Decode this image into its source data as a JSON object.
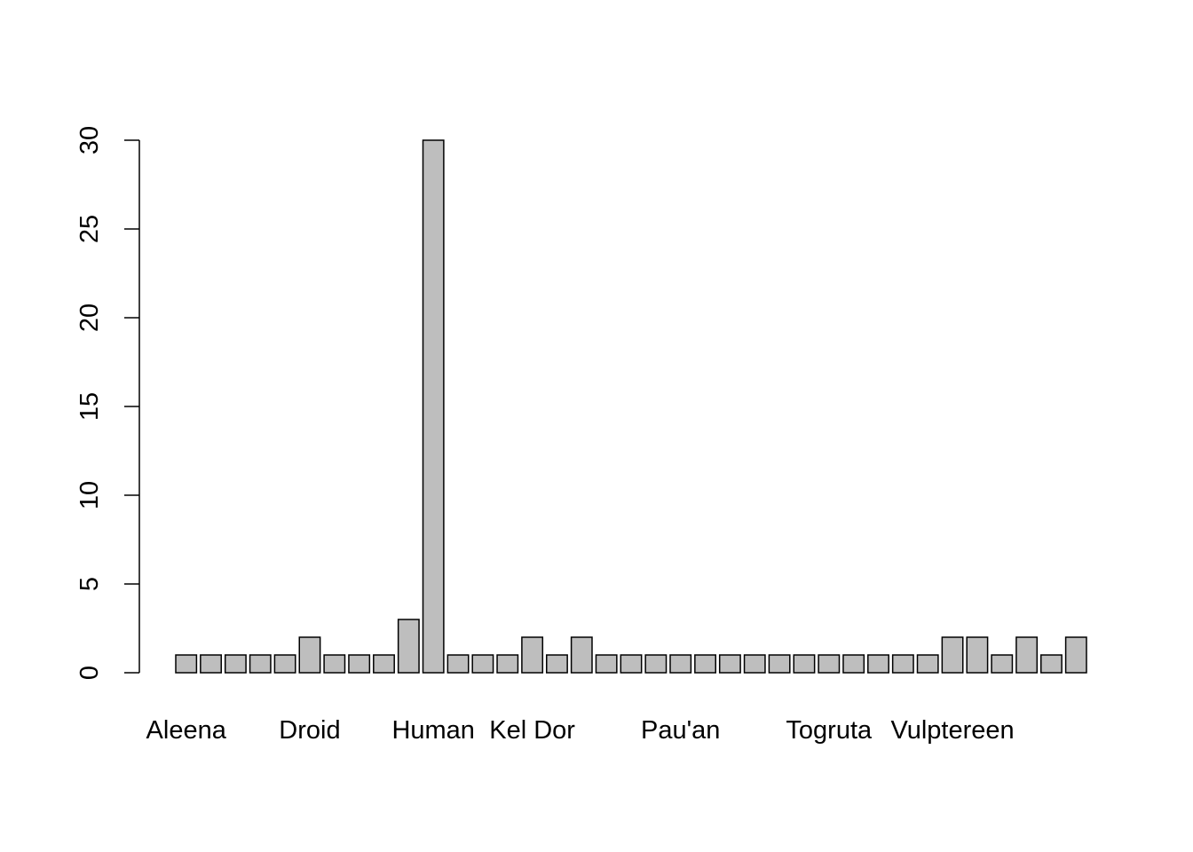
{
  "chart_data": {
    "type": "bar",
    "categories": [
      "Aleena",
      "",
      "",
      "",
      "",
      "Droid",
      "",
      "",
      "",
      "",
      "Human",
      "",
      "",
      "",
      "Kel Dor",
      "",
      "",
      "",
      "",
      "",
      "Pau'an",
      "",
      "",
      "",
      "",
      "",
      "Togruta",
      "",
      "",
      "",
      "",
      "Vulptereen",
      "",
      "",
      "",
      "",
      ""
    ],
    "values": [
      1,
      1,
      1,
      1,
      1,
      2,
      1,
      1,
      1,
      3,
      30,
      1,
      1,
      1,
      2,
      1,
      2,
      1,
      1,
      1,
      1,
      1,
      1,
      1,
      1,
      1,
      1,
      1,
      1,
      1,
      1,
      2,
      2,
      1,
      2,
      1,
      2
    ],
    "yticks": [
      "0",
      "5",
      "10",
      "15",
      "20",
      "25",
      "30"
    ],
    "ylim": [
      0,
      30
    ],
    "bar_color": "#bebebe",
    "bar_border_color": "#000000",
    "title": "",
    "xlabel": "",
    "ylabel": ""
  }
}
